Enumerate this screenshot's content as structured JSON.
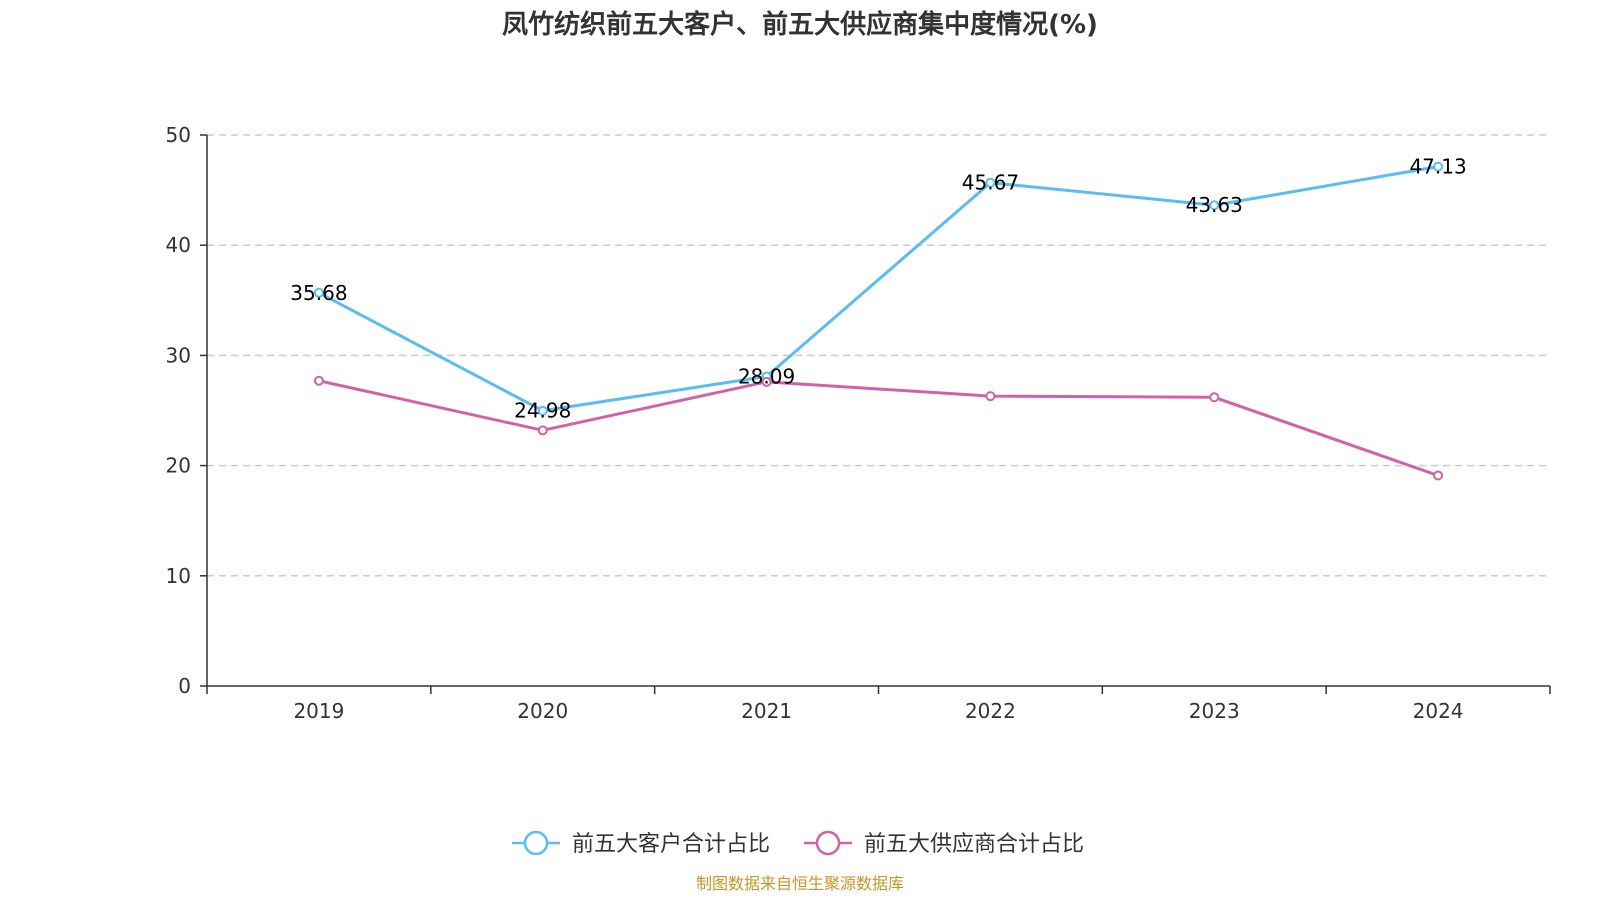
{
  "chart_data": {
    "type": "line",
    "title": "凤竹纺织前五大客户、前五大供应商集中度情况(%)",
    "categories": [
      "2019",
      "2020",
      "2021",
      "2022",
      "2023",
      "2024"
    ],
    "ylim": [
      0,
      50
    ],
    "yticks": [
      0,
      10,
      20,
      30,
      40,
      50
    ],
    "grid": true,
    "legend_position": "bottom",
    "series": [
      {
        "name": "前五大客户合计占比",
        "color": "#5bbcf0",
        "values": [
          35.68,
          24.98,
          28.09,
          45.67,
          43.63,
          47.13
        ],
        "labels": [
          "35.68",
          "24.98",
          "28.09",
          "45.67",
          "43.63",
          "47.13"
        ],
        "show_labels": true
      },
      {
        "name": "前五大供应商合计占比",
        "color": "#d262a8",
        "values": [
          27.7,
          23.2,
          27.6,
          26.3,
          26.2,
          19.1
        ],
        "show_labels": false
      }
    ]
  },
  "source_note": "制图数据来自恒生聚源数据库"
}
